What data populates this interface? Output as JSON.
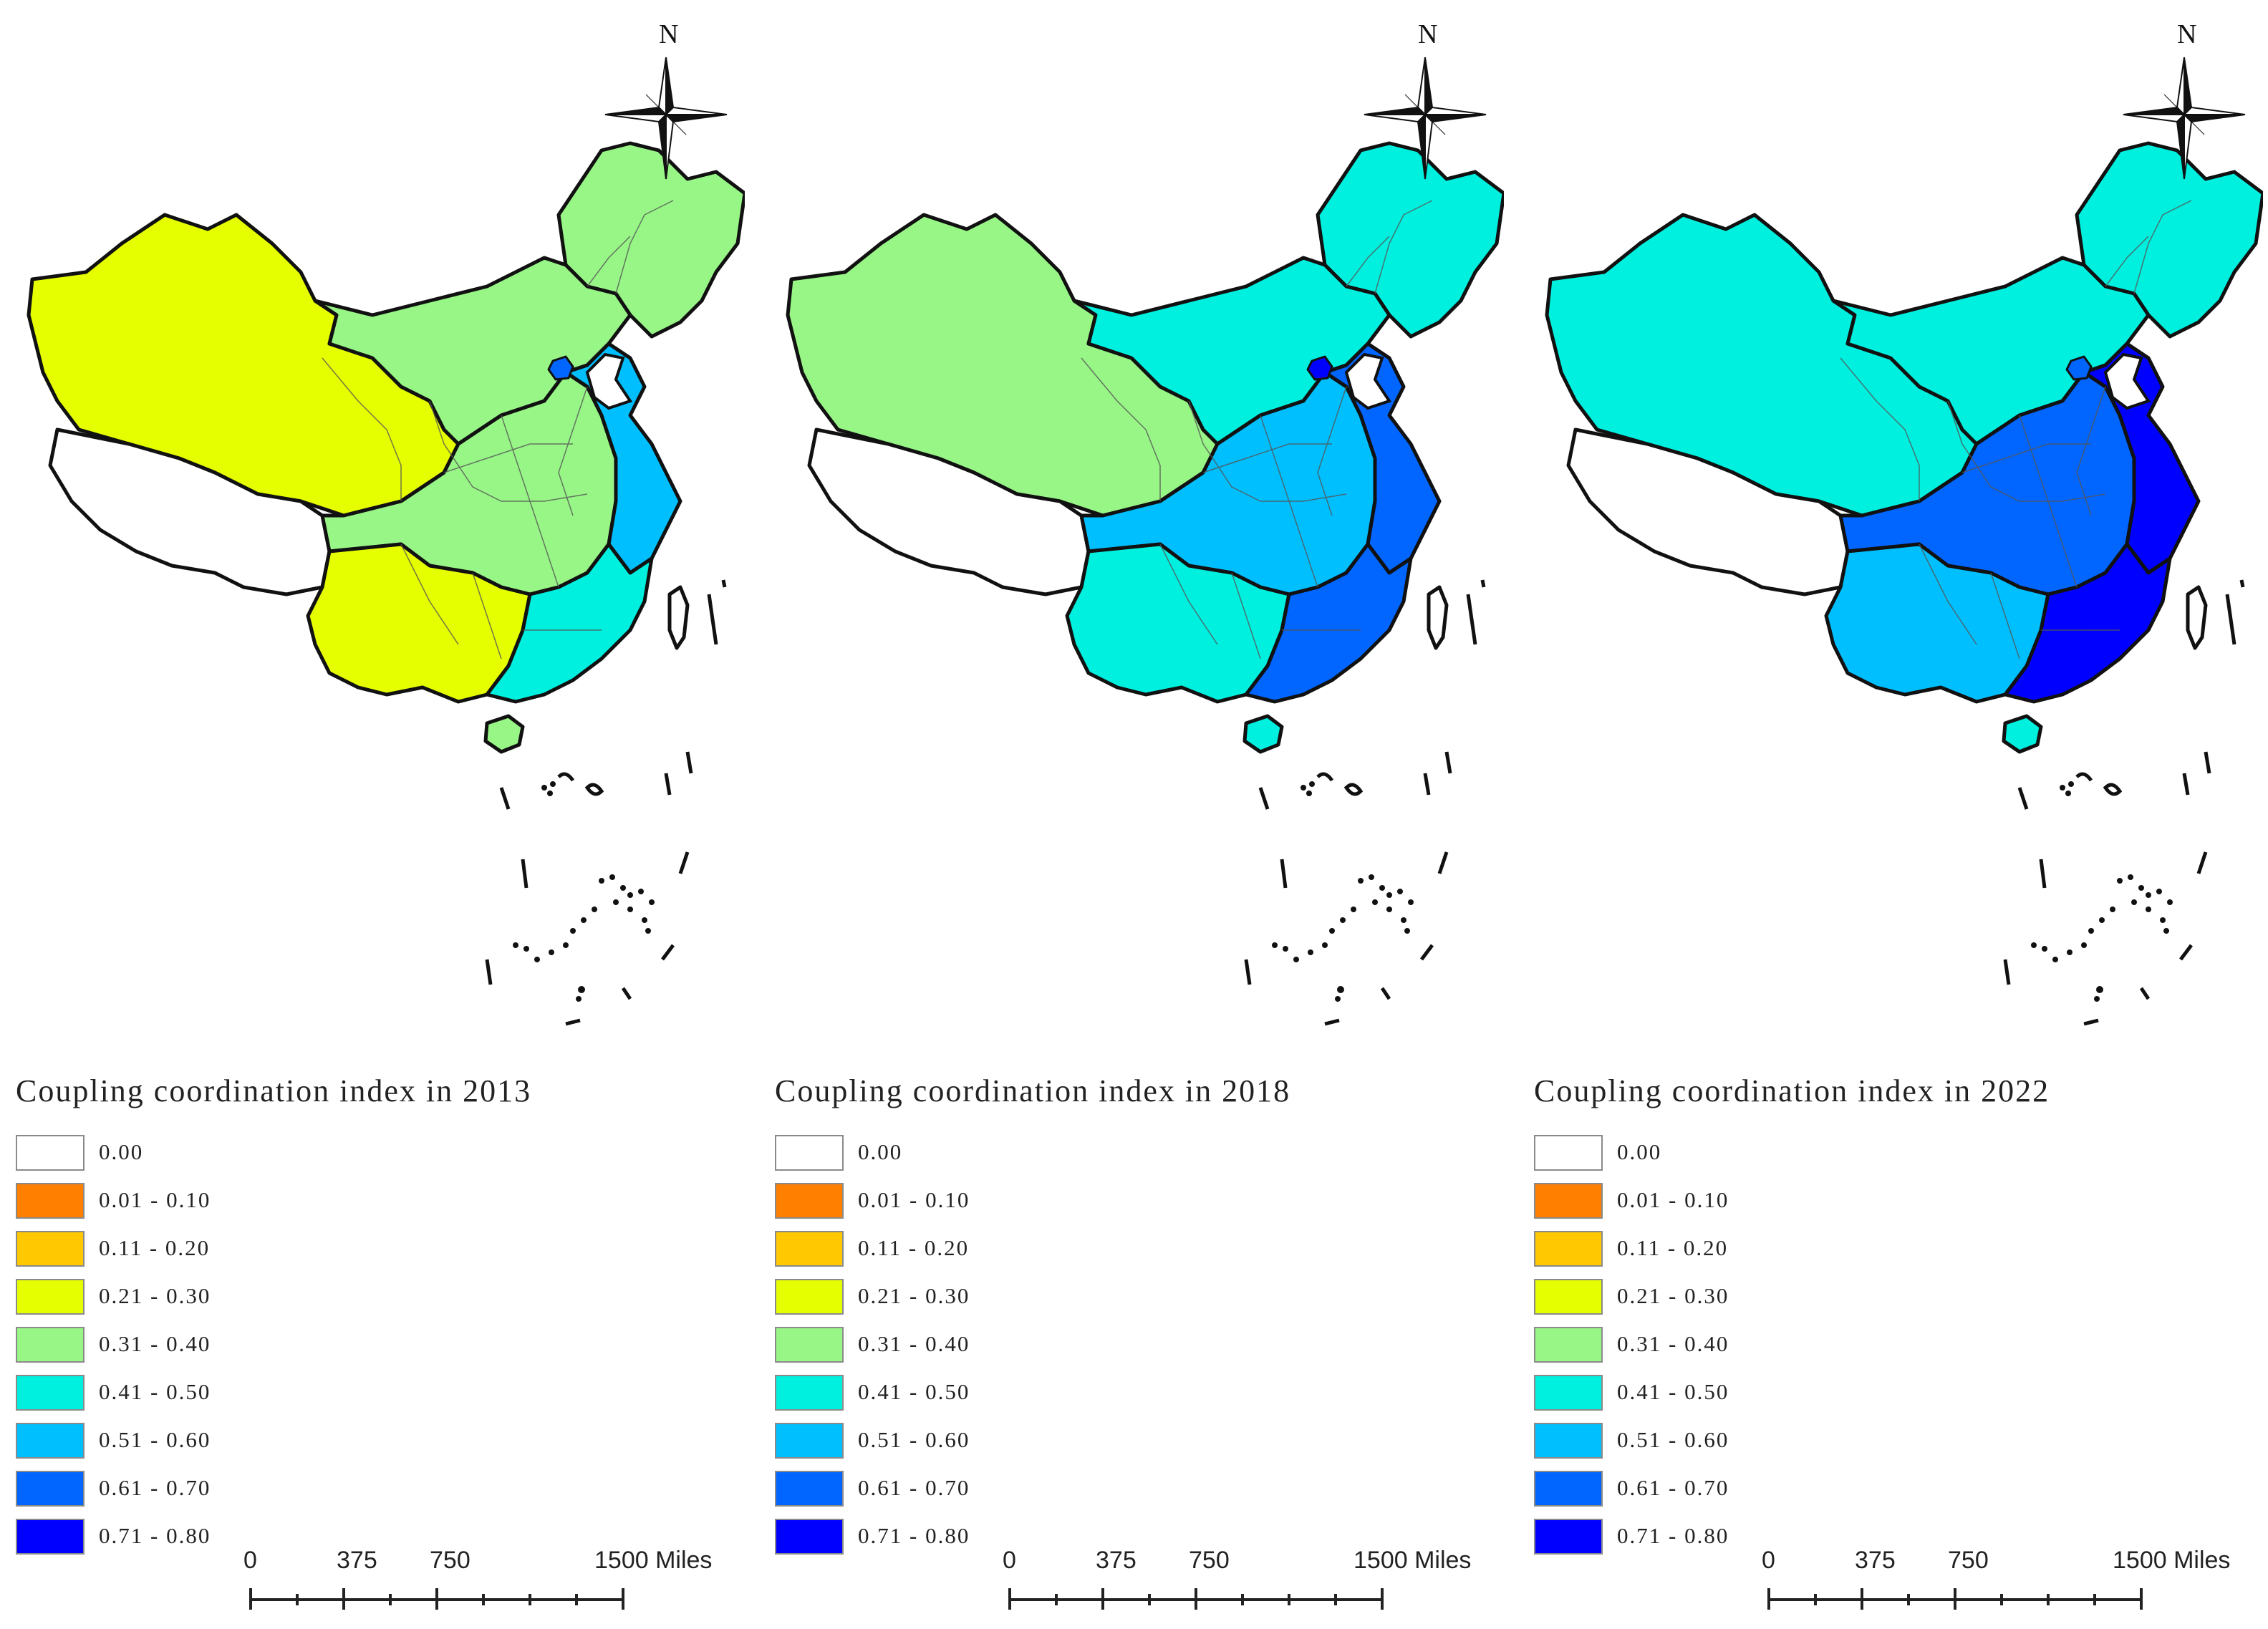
{
  "panels": [
    {
      "title": "Coupling coordination index in 2013",
      "north_label": "N",
      "scale": {
        "labels": [
          "0",
          "375",
          "750",
          "1500 Miles"
        ]
      },
      "region_colors": {
        "west": "#e6ff00",
        "tibet": "#ffffff",
        "northeast": "#98f687",
        "north": "#98f687",
        "central": "#98f687",
        "southwest": "#e6ff00",
        "east_coast": "#00bfff",
        "southeast": "#00f0e0",
        "beijing": "#0066ff",
        "hainan": "#98f687"
      }
    },
    {
      "title": "Coupling coordination index in 2018",
      "north_label": "N",
      "scale": {
        "labels": [
          "0",
          "375",
          "750",
          "1500 Miles"
        ]
      },
      "region_colors": {
        "west": "#98f687",
        "tibet": "#ffffff",
        "northeast": "#00f0e0",
        "north": "#00f0e0",
        "central": "#00bfff",
        "southwest": "#00f0e0",
        "east_coast": "#0066ff",
        "southeast": "#0066ff",
        "beijing": "#0000ff",
        "hainan": "#00f0e0"
      }
    },
    {
      "title": "Coupling coordination index in 2022",
      "north_label": "N",
      "scale": {
        "labels": [
          "0",
          "375",
          "750",
          "1500 Miles"
        ]
      },
      "region_colors": {
        "west": "#00f0e0",
        "tibet": "#ffffff",
        "northeast": "#00f0e0",
        "north": "#00f0e0",
        "central": "#0066ff",
        "southwest": "#00bfff",
        "east_coast": "#0000ff",
        "southeast": "#0000ff",
        "beijing": "#0066ff",
        "hainan": "#00f0e0"
      }
    }
  ],
  "legend": [
    {
      "label": "0.00",
      "color": "#ffffff"
    },
    {
      "label": "0.01 - 0.10",
      "color": "#ff7f00"
    },
    {
      "label": "0.11 - 0.20",
      "color": "#ffc800"
    },
    {
      "label": "0.21 - 0.30",
      "color": "#e6ff00"
    },
    {
      "label": "0.31 - 0.40",
      "color": "#98f687"
    },
    {
      "label": "0.41 - 0.50",
      "color": "#00f0e0"
    },
    {
      "label": "0.51 - 0.60",
      "color": "#00bfff"
    },
    {
      "label": "0.61 - 0.70",
      "color": "#0066ff"
    },
    {
      "label": "0.71 - 0.80",
      "color": "#0000ff"
    }
  ]
}
